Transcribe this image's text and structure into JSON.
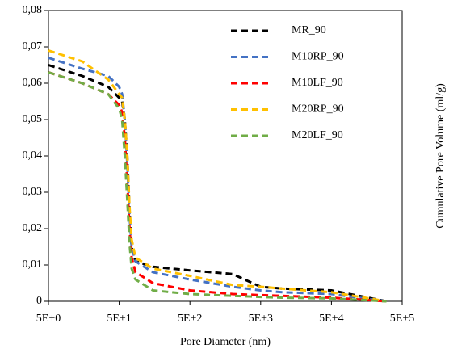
{
  "chart_data": {
    "type": "line",
    "xlabel": "Pore Diameter  (nm)",
    "ylabel": "Cumulative Pore Volume  (ml/g)",
    "xscale": "log",
    "x": [
      5,
      15,
      35,
      50,
      55,
      60,
      65,
      70,
      75,
      85,
      150,
      500,
      2000,
      5000,
      10000,
      50000,
      300000
    ],
    "series": [
      {
        "name": "MR_90",
        "color": "#000000",
        "values": [
          0.065,
          0.062,
          0.059,
          0.056,
          0.055,
          0.05,
          0.04,
          0.025,
          0.015,
          0.011,
          0.0095,
          0.0085,
          0.0075,
          0.004,
          0.0035,
          0.003,
          0
        ]
      },
      {
        "name": "M10RP_90",
        "color": "#4472c4",
        "values": [
          0.067,
          0.064,
          0.062,
          0.059,
          0.057,
          0.05,
          0.038,
          0.024,
          0.015,
          0.011,
          0.008,
          0.006,
          0.004,
          0.003,
          0.0025,
          0.002,
          0
        ]
      },
      {
        "name": "M10LF_90",
        "color": "#ff0000",
        "values": [
          0.063,
          0.06,
          0.057,
          0.054,
          0.052,
          0.045,
          0.033,
          0.02,
          0.012,
          0.008,
          0.005,
          0.003,
          0.002,
          0.0017,
          0.0015,
          0.001,
          0
        ]
      },
      {
        "name": "M20RP_90",
        "color": "#ffc000",
        "values": [
          0.069,
          0.066,
          0.061,
          0.057,
          0.056,
          0.05,
          0.04,
          0.026,
          0.017,
          0.012,
          0.009,
          0.007,
          0.0045,
          0.004,
          0.0035,
          0.0025,
          0
        ]
      },
      {
        "name": "M20LF_90",
        "color": "#70ad47",
        "values": [
          0.063,
          0.06,
          0.057,
          0.053,
          0.05,
          0.04,
          0.028,
          0.016,
          0.009,
          0.006,
          0.003,
          0.002,
          0.0015,
          0.0012,
          0.001,
          0.0008,
          0
        ]
      }
    ],
    "xlim": [
      5,
      500000
    ],
    "xticks": [
      {
        "value": 5,
        "label": "5E+0"
      },
      {
        "value": 50,
        "label": "5E+1"
      },
      {
        "value": 500,
        "label": "5E+2"
      },
      {
        "value": 5000,
        "label": "5E+3"
      },
      {
        "value": 50000,
        "label": "5E+4"
      },
      {
        "value": 500000,
        "label": "5E+5"
      }
    ],
    "ylim": [
      0,
      0.08
    ],
    "yticks": [
      0,
      {
        "value": 0.01,
        "label": "0,01"
      },
      {
        "value": 0.02,
        "label": "0,02"
      },
      {
        "value": 0.03,
        "label": "0,03"
      },
      {
        "value": 0.04,
        "label": "0,04"
      },
      {
        "value": 0.05,
        "label": "0,05"
      },
      {
        "value": 0.06,
        "label": "0,06"
      },
      {
        "value": 0.07,
        "label": "0,07"
      },
      {
        "value": 0.08,
        "label": "0,08"
      }
    ],
    "grid": false,
    "legend": "upper right"
  }
}
